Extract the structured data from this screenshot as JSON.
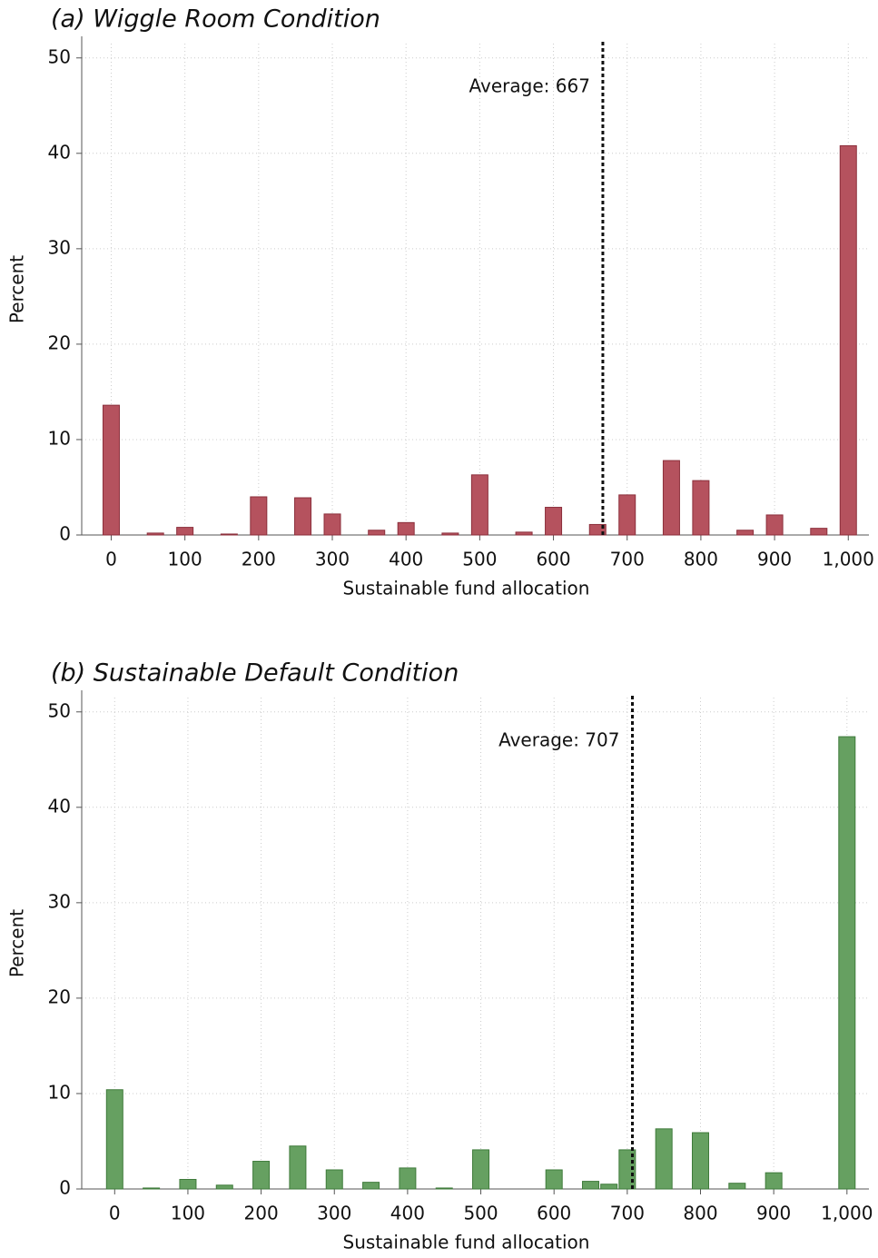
{
  "chart_data": [
    {
      "type": "bar",
      "title": "(a) Wiggle Room Condition",
      "xlabel": "Sustainable fund allocation",
      "ylabel": "Percent",
      "x": [
        0,
        60,
        100,
        160,
        200,
        260,
        300,
        360,
        400,
        460,
        500,
        560,
        600,
        660,
        700,
        760,
        800,
        860,
        900,
        960,
        1000
      ],
      "values": [
        13.6,
        0.2,
        0.8,
        0.1,
        4.0,
        3.9,
        2.2,
        0.5,
        1.3,
        0.2,
        6.3,
        0.3,
        2.9,
        1.1,
        4.2,
        7.8,
        5.7,
        0.5,
        2.1,
        0.7,
        40.8
      ],
      "color": "#b5525e",
      "xlim": [
        -40,
        1028
      ],
      "ylim": [
        0,
        51.5
      ],
      "xticks": [
        0,
        100,
        200,
        300,
        400,
        500,
        600,
        700,
        800,
        900,
        {
          "value": 1000,
          "label": "1,000"
        }
      ],
      "yticks": [
        0,
        10,
        20,
        30,
        40,
        50
      ],
      "grid": true,
      "mean_line": {
        "value": 667,
        "label": "Average: 667"
      }
    },
    {
      "type": "bar",
      "title": "(b) Sustainable Default Condition",
      "xlabel": "Sustainable fund allocation",
      "ylabel": "Percent",
      "x": [
        0,
        50,
        100,
        150,
        200,
        250,
        300,
        350,
        400,
        450,
        500,
        600,
        650,
        675,
        700,
        750,
        800,
        850,
        900,
        1000
      ],
      "values": [
        10.4,
        0.1,
        1.0,
        0.4,
        2.9,
        4.5,
        2.0,
        0.7,
        2.2,
        0.1,
        4.1,
        2.0,
        0.8,
        0.5,
        4.1,
        6.3,
        5.9,
        0.6,
        1.7,
        47.4
      ],
      "color": "#66a061",
      "xlim": [
        -45,
        1030
      ],
      "ylim": [
        0,
        51.5
      ],
      "xticks": [
        0,
        100,
        200,
        300,
        400,
        500,
        600,
        700,
        800,
        900,
        {
          "value": 1000,
          "label": "1,000"
        }
      ],
      "yticks": [
        0,
        10,
        20,
        30,
        40,
        50
      ],
      "grid": true,
      "mean_line": {
        "value": 707,
        "label": "Average: 707"
      }
    }
  ]
}
